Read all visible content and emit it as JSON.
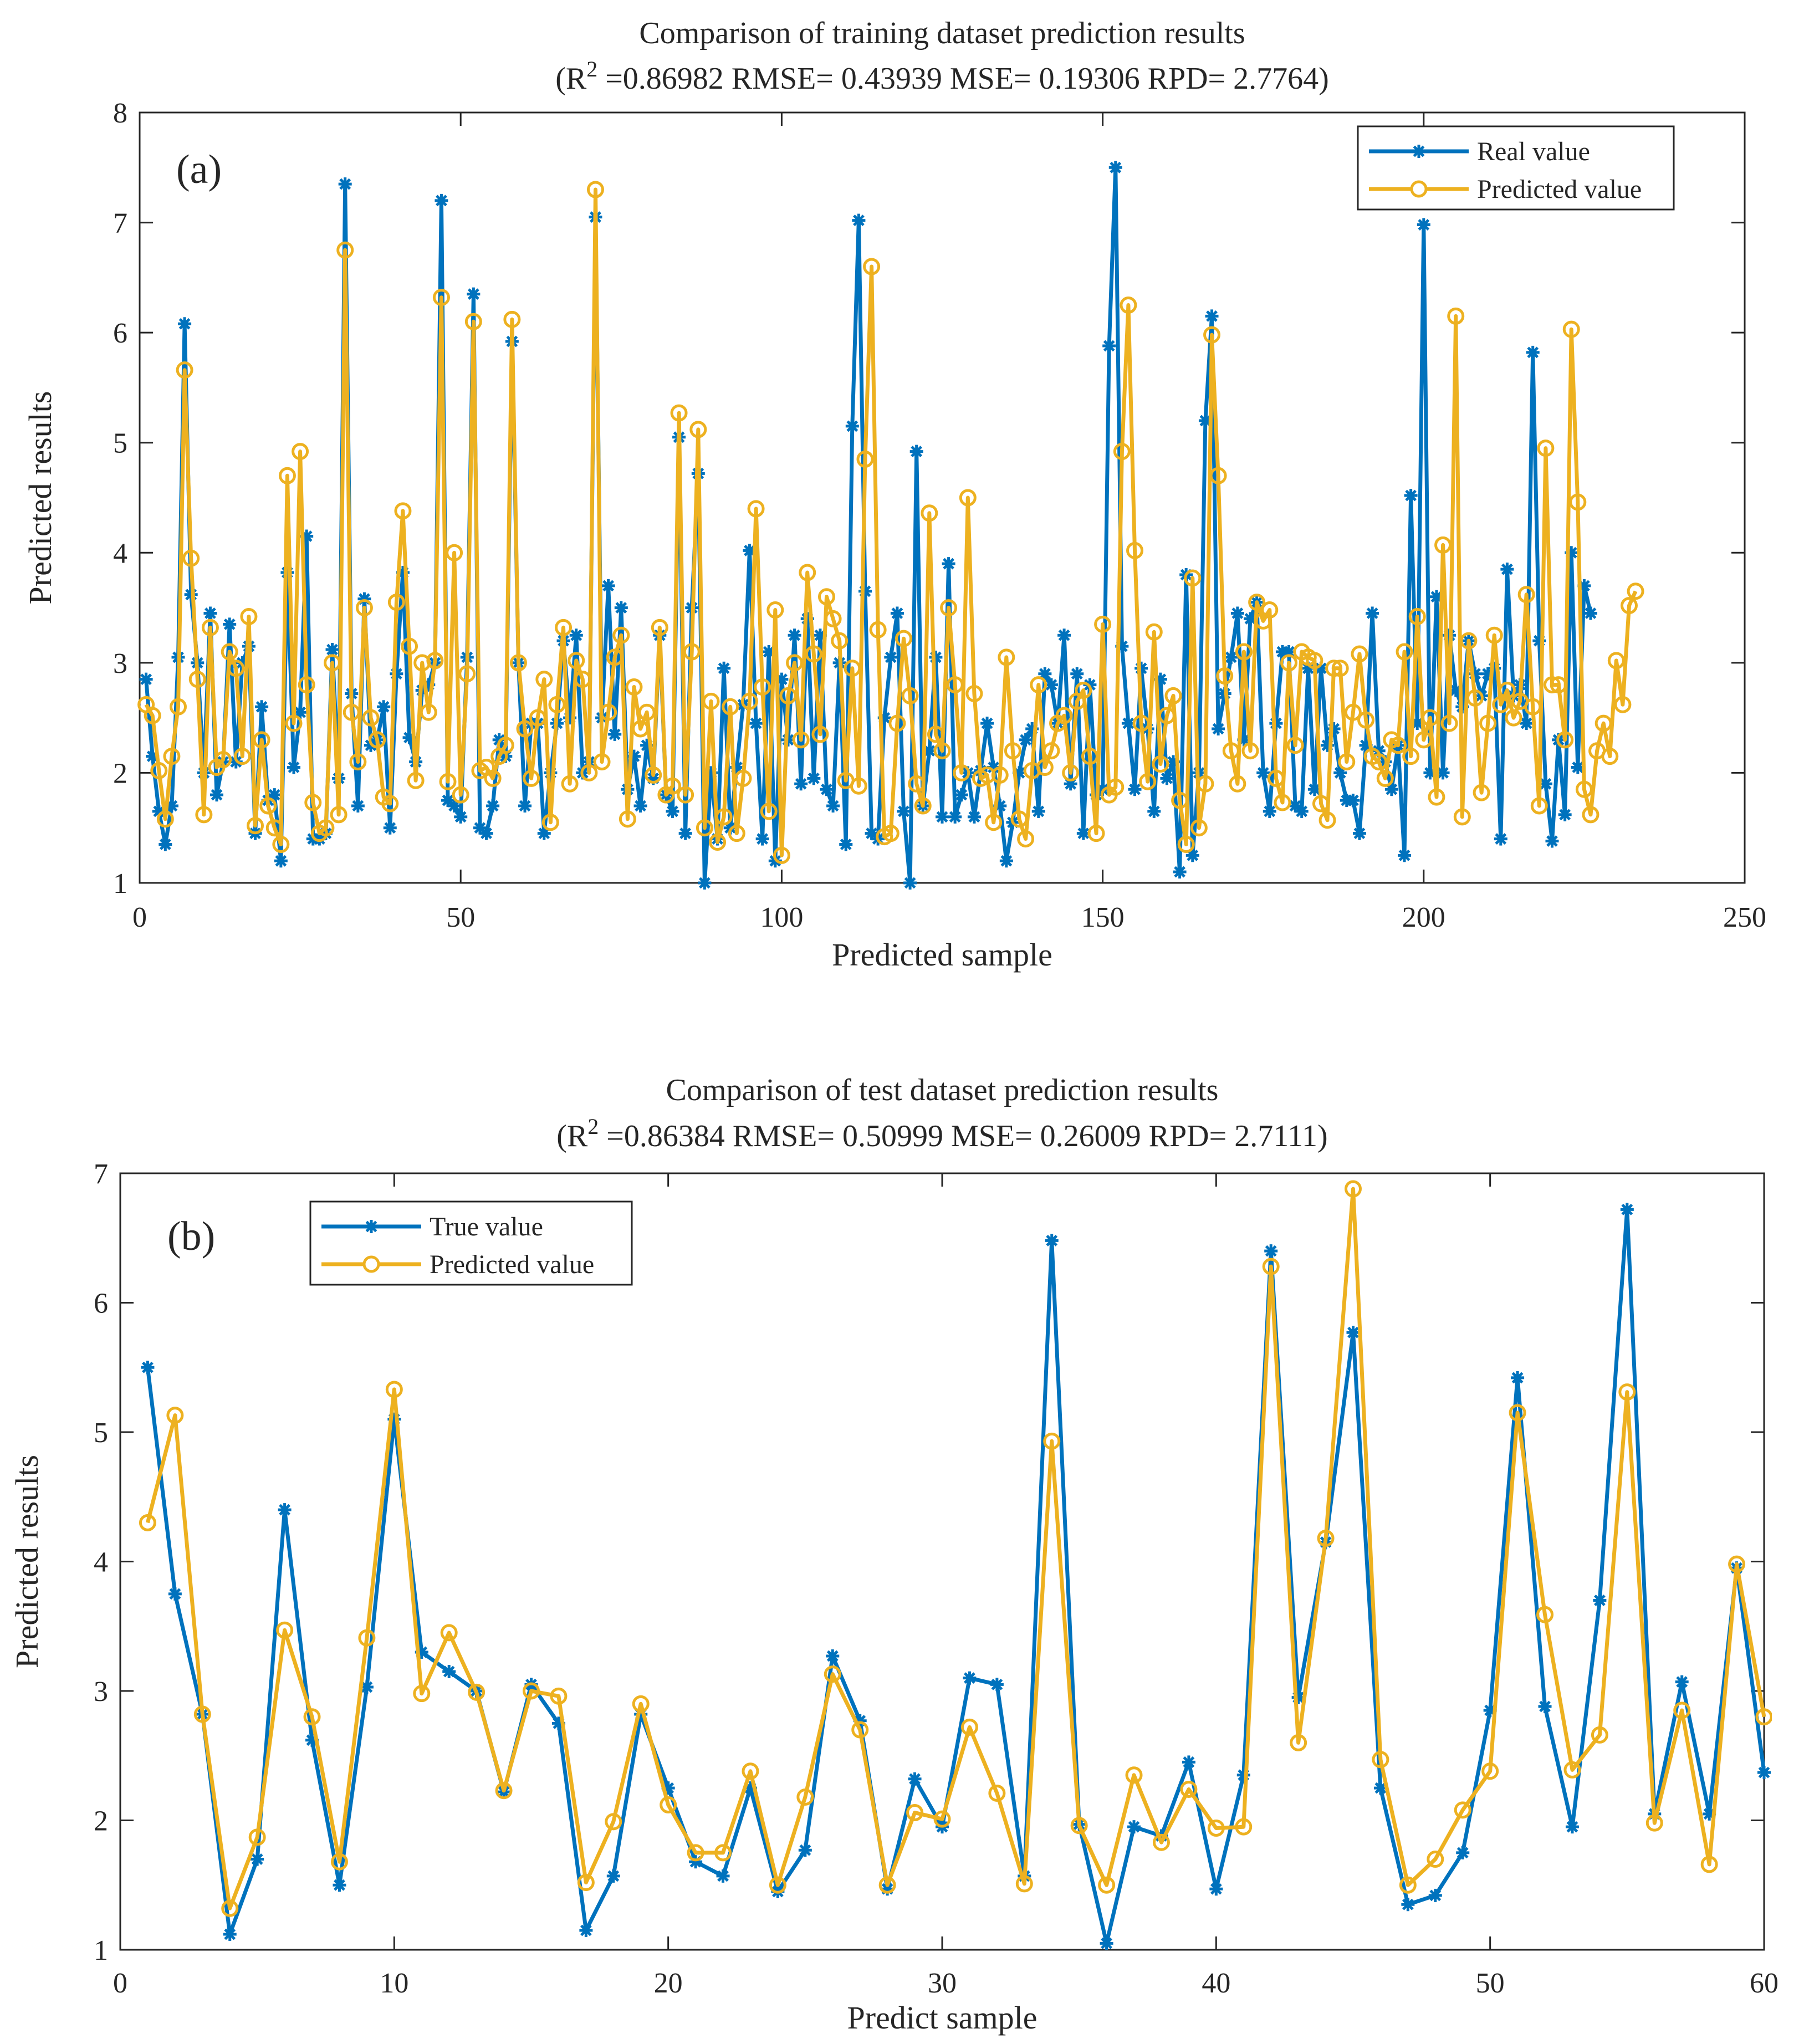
{
  "colors": {
    "real": "#0072BD",
    "pred": "#EDB120",
    "axis": "#262626"
  },
  "chart_data": [
    {
      "type": "line",
      "panel_label": "(a)",
      "title": "Comparison of training dataset prediction results",
      "subtitle_prefix": "(R",
      "subtitle_sup": "2",
      "subtitle_rest": " =0.86982 RMSE= 0.43939 MSE= 0.19306 RPD= 2.7764)",
      "xlabel": "Predicted sample",
      "ylabel": "Predicted results",
      "xlim": [
        0,
        250
      ],
      "ylim": [
        1,
        8
      ],
      "xticks": [
        0,
        50,
        100,
        150,
        200,
        250
      ],
      "yticks": [
        1,
        2,
        3,
        4,
        5,
        6,
        7,
        8
      ],
      "legend_position": "top-right",
      "series": [
        {
          "name": "Real value",
          "marker": "asterisk",
          "values": [
            2.85,
            2.15,
            1.65,
            1.35,
            1.7,
            3.05,
            6.08,
            3.62,
            3.0,
            2.0,
            3.45,
            1.8,
            2.1,
            3.35,
            2.1,
            3.0,
            3.15,
            1.45,
            2.6,
            1.75,
            1.8,
            1.2,
            3.82,
            2.05,
            2.55,
            4.15,
            1.4,
            1.4,
            1.45,
            3.12,
            1.95,
            7.35,
            2.72,
            1.7,
            3.58,
            2.25,
            2.3,
            2.6,
            1.5,
            2.9,
            3.82,
            2.32,
            2.1,
            2.75,
            2.8,
            3.0,
            7.2,
            1.75,
            1.7,
            1.6,
            3.05,
            6.35,
            1.5,
            1.45,
            1.7,
            2.3,
            2.15,
            5.92,
            3.0,
            1.7,
            2.45,
            2.45,
            1.45,
            2.0,
            2.45,
            3.2,
            2.5,
            3.25,
            2.0,
            2.1,
            7.05,
            2.5,
            3.7,
            2.35,
            3.5,
            1.85,
            2.15,
            1.7,
            2.25,
            1.95,
            3.25,
            1.8,
            1.65,
            5.05,
            1.45,
            3.5,
            4.72,
            1.0,
            2.0,
            1.4,
            2.95,
            1.5,
            2.05,
            2.62,
            4.02,
            2.45,
            1.4,
            3.1,
            1.2,
            2.85,
            2.3,
            3.25,
            1.9,
            3.4,
            1.95,
            3.25,
            1.85,
            1.7,
            3.0,
            1.35,
            5.15,
            7.02,
            3.65,
            1.45,
            1.4,
            2.5,
            3.05,
            3.45,
            1.65,
            1.0,
            4.92,
            1.7,
            2.2,
            3.05,
            1.6,
            3.9,
            1.6,
            1.8,
            2.0,
            1.6,
            2.02,
            2.45,
            2.05,
            1.7,
            1.2,
            1.55,
            2.0,
            2.3,
            2.4,
            1.65,
            2.9,
            2.8,
            2.45,
            3.25,
            1.9,
            2.9,
            1.45,
            2.8,
            1.8,
            1.85,
            5.88,
            7.5,
            3.15,
            2.45,
            1.85,
            2.95,
            2.4,
            1.65,
            2.85,
            1.95,
            2.1,
            1.1,
            3.8,
            1.25,
            2.0,
            5.2,
            6.15,
            2.4,
            2.72,
            3.05,
            3.45,
            2.3,
            3.4,
            3.55,
            2.0,
            1.65,
            2.45,
            3.1,
            3.1,
            1.7,
            1.65,
            2.95,
            1.85,
            2.95,
            2.25,
            2.4,
            2.0,
            1.75,
            1.75,
            1.45,
            2.25,
            3.45,
            2.2,
            2.1,
            1.85,
            2.25,
            1.25,
            4.52,
            2.45,
            6.98,
            2.0,
            3.6,
            2.0,
            3.25,
            2.75,
            2.6,
            3.2,
            2.9,
            2.7,
            2.9,
            2.95,
            1.4,
            3.85,
            2.7,
            2.8,
            2.45,
            5.82,
            3.2,
            1.9,
            1.38,
            2.3,
            1.62,
            4.0,
            2.05,
            3.7,
            3.45
          ]
        },
        {
          "name": "Predicted value",
          "marker": "circle",
          "values": [
            2.62,
            2.52,
            2.02,
            1.58,
            2.15,
            2.6,
            5.66,
            3.95,
            2.85,
            1.62,
            3.32,
            2.05,
            2.12,
            3.1,
            2.95,
            2.15,
            3.42,
            1.52,
            2.3,
            1.7,
            1.5,
            1.35,
            4.7,
            2.45,
            4.92,
            2.8,
            1.73,
            1.45,
            1.5,
            3.0,
            1.62,
            6.75,
            2.55,
            2.1,
            3.5,
            2.5,
            2.3,
            1.78,
            1.72,
            3.55,
            4.38,
            3.15,
            1.93,
            3.0,
            2.55,
            3.02,
            6.32,
            1.92,
            4.0,
            1.8,
            2.9,
            6.1,
            2.02,
            2.05,
            1.95,
            2.15,
            2.25,
            6.12,
            3.0,
            2.4,
            1.95,
            2.5,
            2.85,
            1.55,
            2.62,
            3.32,
            1.9,
            3.02,
            2.85,
            2.0,
            7.3,
            2.1,
            2.55,
            3.05,
            3.25,
            1.58,
            2.78,
            2.4,
            2.55,
            1.98,
            3.32,
            1.8,
            1.88,
            5.27,
            1.8,
            3.1,
            5.12,
            1.5,
            2.65,
            1.37,
            1.6,
            2.6,
            1.45,
            1.95,
            2.65,
            4.4,
            2.78,
            1.65,
            3.48,
            1.25,
            2.7,
            3.0,
            2.3,
            3.82,
            3.08,
            2.35,
            3.6,
            3.4,
            3.2,
            1.93,
            2.95,
            1.88,
            4.85,
            6.6,
            3.3,
            1.42,
            1.45,
            2.45,
            3.22,
            2.7,
            1.9,
            1.7,
            4.36,
            2.35,
            2.2,
            3.5,
            2.8,
            2.0,
            4.5,
            2.72,
            1.95,
            1.98,
            1.55,
            1.98,
            3.05,
            2.2,
            1.58,
            1.4,
            2.02,
            2.8,
            2.05,
            2.2,
            2.45,
            2.52,
            2.0,
            2.65,
            2.75,
            2.15,
            1.45,
            3.35,
            1.8,
            1.87,
            4.92,
            6.25,
            4.02,
            2.45,
            1.92,
            3.28,
            2.08,
            2.52,
            2.7,
            1.75,
            1.35,
            3.77,
            1.5,
            1.9,
            5.98,
            4.7,
            2.88,
            2.2,
            1.9,
            3.1,
            2.2,
            3.55,
            3.38,
            3.48,
            1.95,
            1.73,
            3.0,
            2.25,
            3.1,
            3.05,
            3.02,
            1.72,
            1.57,
            2.95,
            2.95,
            2.1,
            2.55,
            3.08,
            2.48,
            2.15,
            2.1,
            1.95,
            2.3,
            2.25,
            3.1,
            2.15,
            3.42,
            2.3,
            2.5,
            1.78,
            4.07,
            2.45,
            6.15,
            1.6,
            3.2,
            2.68,
            1.82,
            2.45,
            3.25,
            2.62,
            2.75,
            2.5,
            2.65,
            3.62,
            2.6,
            1.7,
            4.95,
            2.8,
            2.8,
            2.3,
            6.03,
            4.46,
            1.85,
            1.62,
            2.2,
            2.45,
            2.15,
            3.02,
            2.62,
            3.52,
            3.65
          ]
        }
      ]
    },
    {
      "type": "line",
      "panel_label": "(b)",
      "title": "Comparison of test dataset prediction results",
      "subtitle_prefix": "(R",
      "subtitle_sup": "2",
      "subtitle_rest": " =0.86384 RMSE= 0.50999 MSE= 0.26009 RPD= 2.7111)",
      "xlabel": "Predict sample",
      "ylabel": "Predicted results",
      "xlim": [
        0,
        60
      ],
      "ylim": [
        1,
        7
      ],
      "xticks": [
        0,
        10,
        20,
        30,
        40,
        50,
        60
      ],
      "yticks": [
        1,
        2,
        3,
        4,
        5,
        6,
        7
      ],
      "legend_position": "top-left",
      "series": [
        {
          "name": "True value",
          "marker": "asterisk",
          "values": [
            5.5,
            3.75,
            2.82,
            1.12,
            1.7,
            4.4,
            2.62,
            1.5,
            3.03,
            5.1,
            3.3,
            3.15,
            3.0,
            2.22,
            3.05,
            2.75,
            1.15,
            1.57,
            2.82,
            2.25,
            1.68,
            1.57,
            2.25,
            1.45,
            1.77,
            3.27,
            2.77,
            1.47,
            2.32,
            1.95,
            3.1,
            3.05,
            1.57,
            6.48,
            1.97,
            1.05,
            1.95,
            1.88,
            2.45,
            1.47,
            2.35,
            6.4,
            2.95,
            4.15,
            5.77,
            2.25,
            1.35,
            1.42,
            1.75,
            2.85,
            5.42,
            2.88,
            1.95,
            3.7,
            6.72,
            2.05,
            3.07,
            2.05,
            3.95,
            2.37
          ]
        },
        {
          "name": "Predicted value",
          "marker": "circle",
          "values": [
            4.3,
            5.13,
            2.82,
            1.32,
            1.87,
            3.47,
            2.8,
            1.68,
            3.41,
            5.33,
            2.98,
            3.45,
            2.99,
            2.23,
            3.0,
            2.96,
            1.52,
            1.99,
            2.9,
            2.12,
            1.75,
            1.75,
            2.38,
            1.5,
            2.18,
            3.13,
            2.7,
            1.5,
            2.06,
            2.01,
            2.72,
            2.21,
            1.51,
            4.93,
            1.96,
            1.5,
            2.35,
            1.83,
            2.24,
            1.94,
            1.95,
            6.28,
            2.6,
            4.18,
            6.88,
            2.47,
            1.5,
            1.7,
            2.08,
            2.38,
            5.15,
            3.59,
            2.39,
            2.66,
            5.31,
            1.98,
            2.85,
            1.66,
            3.98,
            2.8
          ]
        }
      ]
    }
  ]
}
